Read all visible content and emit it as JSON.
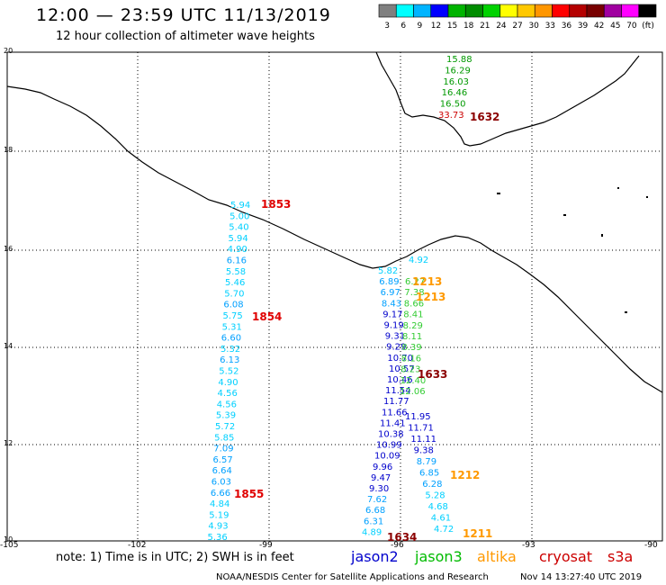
{
  "header": {
    "title": "12:00 — 23:59 UTC 11/13/2019",
    "subtitle": "12 hour collection of altimeter wave heights"
  },
  "legend": {
    "colors": [
      "#808080",
      "#00ffff",
      "#00b4ff",
      "#0000ff",
      "#00b400",
      "#008c00",
      "#00d200",
      "#ffff00",
      "#ffc800",
      "#ff9600",
      "#ff0000",
      "#b40000",
      "#780000",
      "#a000a0",
      "#ff00ff",
      "#000000"
    ],
    "labels": [
      "3",
      "6",
      "9",
      "12",
      "15",
      "18",
      "21",
      "24",
      "27",
      "30",
      "33",
      "36",
      "39",
      "42",
      "45",
      "70",
      "(ft)"
    ]
  },
  "axes": {
    "lat_labels": [
      "20",
      "18",
      "16",
      "14",
      "12",
      "10"
    ],
    "lon_labels": [
      "-105",
      "-102",
      "-99",
      "-96",
      "-93",
      "-90"
    ]
  },
  "tracks": [
    {
      "satellite": "cryosat s3a",
      "time": "1853",
      "color": "#e00000"
    },
    {
      "satellite": "cryosat s3a",
      "time": "1854",
      "color": "#e00000"
    },
    {
      "satellite": "cryosat s3a",
      "time": "1855",
      "color": "#e00000"
    },
    {
      "satellite": "cryosat",
      "time": "1632",
      "color": "#8b0000"
    },
    {
      "satellite": "cryosat",
      "time": "1633",
      "color": "#8b0000"
    },
    {
      "satellite": "cryosat",
      "time": "1634",
      "color": "#8b0000"
    },
    {
      "satellite": "altika",
      "time": "1213",
      "color": "#ff9900"
    },
    {
      "satellite": "altika",
      "time": "1213",
      "color": "#ff9900"
    },
    {
      "satellite": "altika",
      "time": "1212",
      "color": "#ff9900"
    },
    {
      "satellite": "altika",
      "time": "1211",
      "color": "#ff9900"
    }
  ],
  "footer": {
    "note": "note:  1) Time is in UTC;  2) SWH is in feet",
    "sat_legend": [
      {
        "name": "jason2",
        "color": "#0000cc"
      },
      {
        "name": "jason3",
        "color": "#00bb00"
      },
      {
        "name": "altika",
        "color": "#ff9900"
      },
      {
        "name": "cryosat",
        "color": "#cc0000"
      },
      {
        "name": "s3a",
        "color": "#cc0000"
      }
    ],
    "credit": "NOAA/NESDIS Center for Satellite Applications and Research",
    "datetime": "Nov 14 13:27:40 UTC 2019"
  },
  "measurements": {
    "s3a_track": [
      "5.94",
      "5.00",
      "5.40",
      "5.94",
      "4.90",
      "6.16",
      "5.58",
      "5.46",
      "5.70",
      "6.08",
      "5.75",
      "5.31",
      "6.60",
      "5.32",
      "6.13",
      "5.52",
      "4.90",
      "4.56",
      "4.56",
      "5.39",
      "5.72",
      "5.85",
      "7.09",
      "6.57",
      "6.64",
      "6.03",
      "6.66",
      "4.84",
      "5.19",
      "4.93",
      "5.36"
    ],
    "jason2_track": [
      "5.82",
      "6.89",
      "6.97",
      "8.43",
      "9.17",
      "9.19",
      "9.31",
      "9.29",
      "10.70",
      "10.57",
      "10.46",
      "11.54",
      "11.77",
      "11.66",
      "11.41",
      "10.38",
      "10.99",
      "10.09",
      "9.96",
      "9.47",
      "9.30",
      "7.62",
      "6.68",
      "6.31",
      "4.89"
    ],
    "jason3_track": [
      "6.27",
      "7.38",
      "8.66",
      "8.41",
      "8.29",
      "8.11",
      "8.39",
      "8.16",
      "8.23",
      "12.40",
      "12.06"
    ],
    "altika_track": [
      "4.92",
      "11.95",
      "11.71",
      "11.11",
      "9.38",
      "8.79",
      "6.85",
      "6.28",
      "5.28",
      "4.68",
      "4.61",
      "4.72"
    ],
    "cryosat_track": [
      "15.88",
      "16.29",
      "16.03",
      "16.46",
      "16.50",
      "33.73"
    ]
  }
}
